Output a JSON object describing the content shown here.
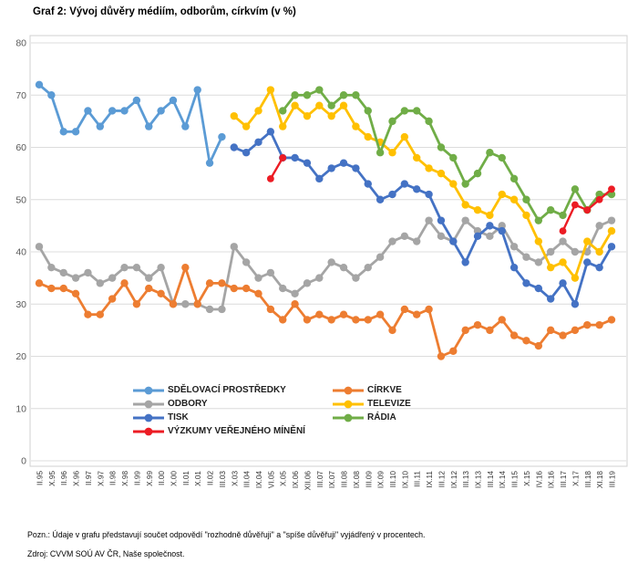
{
  "page": {
    "title": "Graf 2: Vývoj důvěry médiím, odborům, církvím (v %)"
  },
  "notes": {
    "pozn": "Pozn.: Údaje v grafu představují součet odpovědí \"rozhodně důvěřuji\" a \"spíše důvěřuji\" vyjádřený v procentech.",
    "zdroj": "Zdroj: CVVM SOÚ AV ČR, Naše společnost."
  },
  "chart_data": {
    "type": "line",
    "title": "Graf 2: Vývoj důvěry médiím, odborům, církvím (v %)",
    "xlabel": "",
    "ylabel": "",
    "ylim": [
      0,
      80
    ],
    "yticks": [
      0,
      10,
      20,
      30,
      40,
      50,
      60,
      70,
      80
    ],
    "grid": "horizontal",
    "legend_position": "inside-bottom",
    "categories": [
      "II.95",
      "X.95",
      "II.96",
      "X.96",
      "II.97",
      "X.97",
      "II.98",
      "X.98",
      "II.99",
      "X.99",
      "II.00",
      "X.00",
      "II.01",
      "X.01",
      "II.02",
      "III.03",
      "X.03",
      "III.04",
      "IX.04",
      "VI.05",
      "X.05",
      "IX.06",
      "XII.06",
      "III.07",
      "IX.07",
      "III.08",
      "IX.08",
      "III.09",
      "IX.09",
      "III.10",
      "IX.10",
      "III.11",
      "IX.11",
      "III.12",
      "IX.12",
      "III.13",
      "IX.13",
      "III.14",
      "IX.14",
      "III.15",
      "X.15",
      "IV.16",
      "IX.16",
      "III.17",
      "X.17",
      "III.18",
      "XI.18",
      "III.19"
    ],
    "series": [
      {
        "name": "ODBORY",
        "color": "#A5A5A5",
        "values": [
          41,
          37,
          36,
          35,
          36,
          34,
          35,
          37,
          37,
          35,
          37,
          30,
          30,
          30,
          29,
          29,
          41,
          38,
          35,
          36,
          33,
          32,
          34,
          35,
          38,
          37,
          35,
          37,
          39,
          42,
          43,
          42,
          46,
          43,
          42,
          46,
          44,
          43,
          45,
          41,
          39,
          38,
          40,
          42,
          40,
          40,
          45,
          46
        ]
      },
      {
        "name": "CÍRKVE",
        "color": "#ED7D31",
        "values": [
          34,
          33,
          33,
          32,
          28,
          28,
          31,
          34,
          30,
          33,
          32,
          30,
          37,
          30,
          34,
          34,
          33,
          33,
          32,
          29,
          27,
          30,
          27,
          28,
          27,
          28,
          27,
          27,
          28,
          25,
          29,
          28,
          29,
          20,
          21,
          25,
          26,
          25,
          27,
          24,
          23,
          22,
          25,
          24,
          25,
          26,
          26,
          27
        ]
      },
      {
        "name": "SDĚLOVACÍ PROSTŘEDKY",
        "color": "#5B9BD5",
        "values": [
          72,
          70,
          63,
          63,
          67,
          64,
          67,
          67,
          69,
          64,
          67,
          69,
          64,
          71,
          57,
          62,
          null,
          null,
          null,
          null,
          null,
          null,
          null,
          null,
          null,
          null,
          null,
          null,
          null,
          null,
          null,
          null,
          null,
          null,
          null,
          null,
          null,
          null,
          null,
          null,
          null,
          null,
          null,
          null,
          null,
          null,
          null,
          null
        ]
      },
      {
        "name": "TELEVIZE",
        "color": "#FFC000",
        "values": [
          null,
          null,
          null,
          null,
          null,
          null,
          null,
          null,
          null,
          null,
          null,
          null,
          null,
          null,
          null,
          null,
          66,
          64,
          67,
          71,
          64,
          68,
          66,
          68,
          66,
          68,
          64,
          62,
          61,
          59,
          62,
          58,
          56,
          55,
          53,
          49,
          48,
          47,
          51,
          50,
          47,
          42,
          37,
          38,
          35,
          42,
          40,
          44
        ]
      },
      {
        "name": "RÁDIA",
        "color": "#70AD47",
        "values": [
          null,
          null,
          null,
          null,
          null,
          null,
          null,
          null,
          null,
          null,
          null,
          null,
          null,
          null,
          null,
          null,
          null,
          null,
          null,
          null,
          67,
          70,
          70,
          71,
          68,
          70,
          70,
          67,
          59,
          65,
          67,
          67,
          65,
          60,
          58,
          53,
          55,
          59,
          58,
          54,
          50,
          46,
          48,
          47,
          52,
          48,
          51,
          51
        ]
      },
      {
        "name": "TISK",
        "color": "#4472C4",
        "values": [
          null,
          null,
          null,
          null,
          null,
          null,
          null,
          null,
          null,
          null,
          null,
          null,
          null,
          null,
          null,
          null,
          60,
          59,
          61,
          63,
          58,
          58,
          57,
          54,
          56,
          57,
          56,
          53,
          50,
          51,
          53,
          52,
          51,
          46,
          42,
          38,
          43,
          45,
          44,
          37,
          34,
          33,
          31,
          34,
          30,
          38,
          37,
          41
        ]
      },
      {
        "name": "VÝZKUMY VEŘEJNÉHO MÍNĚNÍ",
        "color": "#EC1C24",
        "values": [
          null,
          null,
          null,
          null,
          null,
          null,
          null,
          null,
          null,
          null,
          null,
          null,
          null,
          null,
          null,
          null,
          null,
          null,
          null,
          54,
          58,
          null,
          null,
          null,
          null,
          null,
          null,
          null,
          null,
          null,
          null,
          null,
          null,
          null,
          null,
          null,
          null,
          null,
          null,
          null,
          null,
          null,
          null,
          44,
          49,
          48,
          50,
          52
        ]
      }
    ],
    "legend": {
      "columns": [
        [
          "SDĚLOVACÍ PROSTŘEDKY",
          "ODBORY",
          "TISK",
          "VÝZKUMY VEŘEJNÉHO MÍNĚNÍ"
        ],
        [
          "CÍRKVE",
          "TELEVIZE",
          "RÁDIA"
        ]
      ]
    }
  }
}
